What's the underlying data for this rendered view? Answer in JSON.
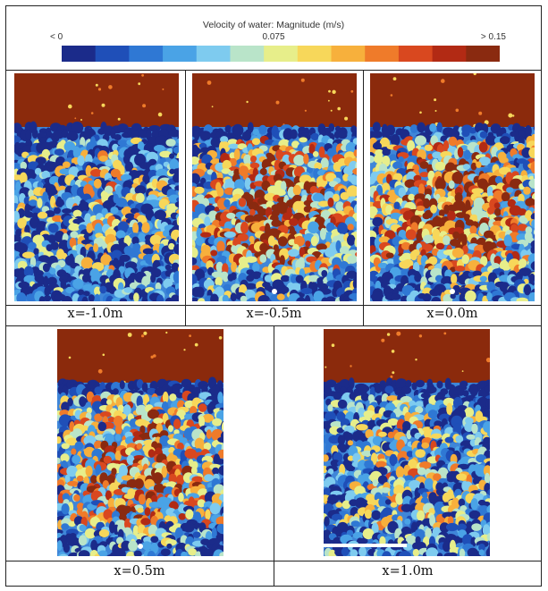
{
  "legend": {
    "title": "Velocity of water: Magnitude (m/s)",
    "min_label": "< 0",
    "mid_label": "0.075",
    "max_label": "> 0.15",
    "colors": [
      "#1b2b8a",
      "#1f4fb8",
      "#2f78d4",
      "#4aa3e6",
      "#7ecbef",
      "#b9e4c9",
      "#e7ee8a",
      "#f7d75a",
      "#f7b03c",
      "#ef7b2a",
      "#d9481f",
      "#b22a14",
      "#8a2a10"
    ]
  },
  "panels": [
    {
      "id": "p1",
      "label": "x=-1.0m",
      "hot_level": 0.35,
      "seed": 11,
      "has_dot": false,
      "has_scalebar": false
    },
    {
      "id": "p2",
      "label": "x=-0.5m",
      "hot_level": 0.8,
      "seed": 23,
      "has_dot": true,
      "has_scalebar": false
    },
    {
      "id": "p3",
      "label": "x=0.0m",
      "hot_level": 0.85,
      "seed": 37,
      "has_dot": true,
      "has_scalebar": false
    },
    {
      "id": "p4",
      "label": "x=0.5m",
      "hot_level": 0.7,
      "seed": 41,
      "has_dot": true,
      "has_scalebar": false
    },
    {
      "id": "p5",
      "label": "x=1.0m",
      "hot_level": 0.4,
      "seed": 53,
      "has_dot": false,
      "has_scalebar": true
    }
  ],
  "top_band_color": "#8b2a0c"
}
